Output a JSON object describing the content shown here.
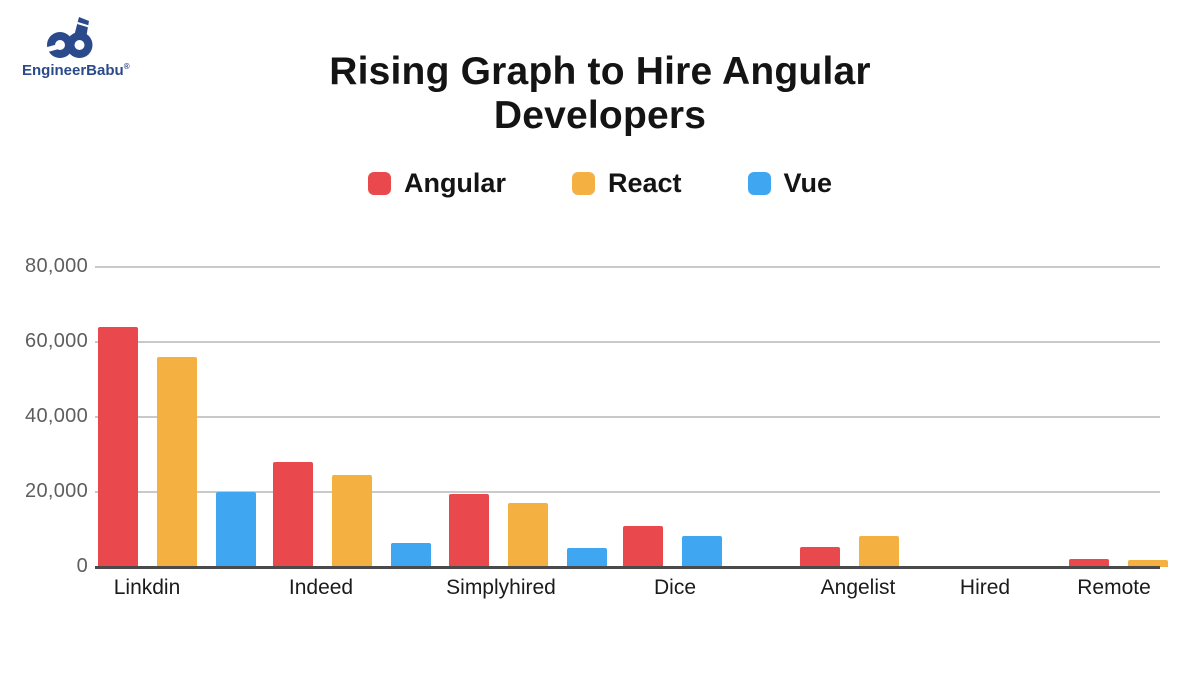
{
  "logo": {
    "name": "EngineerBabu",
    "registered_mark": "®",
    "brand_color": "#2b4a8c"
  },
  "title": {
    "line1": "Rising Graph to Hire Angular",
    "line2": "Developers"
  },
  "chart_data": {
    "type": "bar",
    "title": "Rising Graph to Hire Angular Developers",
    "categories": [
      "Linkdin",
      "Indeed",
      "Simplyhired",
      "Dice",
      "Angelist",
      "Hired",
      "Remote"
    ],
    "series": [
      {
        "name": "Angular",
        "color": "#e9494c",
        "values": [
          64000,
          28000,
          19500,
          11000,
          5300,
          0,
          2200
        ]
      },
      {
        "name": "React",
        "color": "#f5b042",
        "values": [
          56000,
          24500,
          17000,
          0,
          8300,
          0,
          1900
        ]
      },
      {
        "name": "Vue",
        "color": "#3fa7f2",
        "values": [
          20000,
          6500,
          5000,
          8300,
          0,
          0,
          0
        ]
      }
    ],
    "ylim": [
      0,
      80000
    ],
    "yticks": [
      "80,000",
      "60,000",
      "40,000",
      "20,000",
      "0"
    ],
    "grid": true,
    "legend_position": "top",
    "note": "zero values are omitted from the plot; remaining bars in a group pack together"
  }
}
